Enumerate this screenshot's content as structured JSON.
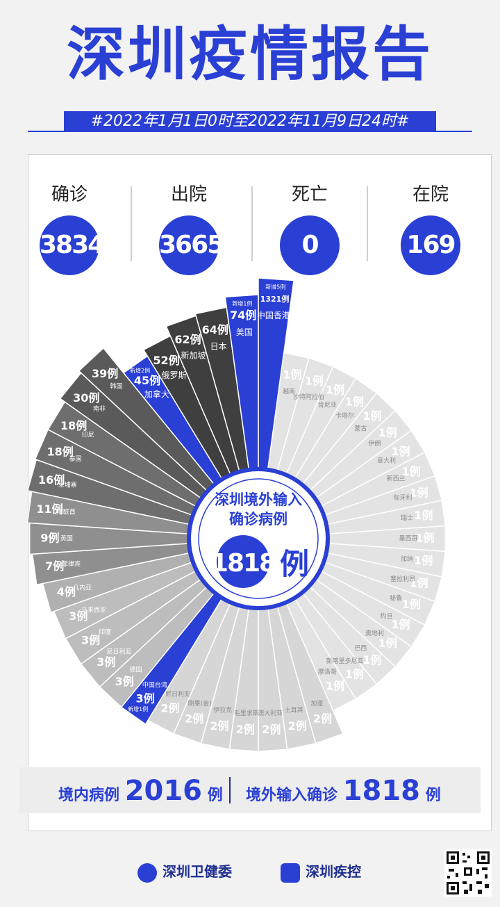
{
  "title": "深圳疫情报告",
  "date_range": "#2022年1月1日0时至2022年11月9日24时#",
  "stats": [
    {
      "label": "确诊",
      "value": "3834"
    },
    {
      "label": "出院",
      "value": "3665"
    },
    {
      "label": "死亡",
      "value": "0"
    },
    {
      "label": "在院",
      "value": "169"
    }
  ],
  "center": {
    "line1": "深圳境外输入",
    "line2": "确诊病例",
    "number": "1818",
    "unit": "例"
  },
  "bottom": {
    "domestic_label": "境内病例",
    "domestic_value": "2016",
    "domestic_unit": "例",
    "imported_label": "境外输入确诊",
    "imported_value": "1818",
    "imported_unit": "例"
  },
  "footer": {
    "org1": "深圳卫健委",
    "org2": "深圳疾控"
  },
  "colors": {
    "blue": "#2a3fd4",
    "dark": "#3a3a3a",
    "light": "#e2e2e2"
  },
  "chart_data": {
    "type": "pie",
    "title": "深圳境外输入确诊病例 1818例",
    "unit": "例",
    "slices": [
      {
        "name": "中国香港",
        "value": 1321,
        "label": "1321例",
        "note": "新增5例",
        "color": "#2a3fd4"
      },
      {
        "name": "越南",
        "value": 1,
        "label": "1例"
      },
      {
        "name": "沙特阿拉伯",
        "value": 1,
        "label": "1例"
      },
      {
        "name": "肯尼亚",
        "value": 1,
        "label": "1例"
      },
      {
        "name": "卡塔尔",
        "value": 1,
        "label": "1例"
      },
      {
        "name": "蒙古",
        "value": 1,
        "label": "1例"
      },
      {
        "name": "伊朗",
        "value": 1,
        "label": "1例"
      },
      {
        "name": "意大利",
        "value": 1,
        "label": "1例"
      },
      {
        "name": "新西兰",
        "value": 1,
        "label": "1例"
      },
      {
        "name": "匈牙利",
        "value": 1,
        "label": "1例"
      },
      {
        "name": "瑞士",
        "value": 1,
        "label": "1例"
      },
      {
        "name": "墨西哥",
        "value": 1,
        "label": "1例"
      },
      {
        "name": "加纳",
        "value": 1,
        "label": "1例"
      },
      {
        "name": "塞拉利昂",
        "value": 1,
        "label": "1例"
      },
      {
        "name": "秘鲁",
        "value": 1,
        "label": "1例"
      },
      {
        "name": "约旦",
        "value": 1,
        "label": "1例"
      },
      {
        "name": "奥地利",
        "value": 1,
        "label": "1例"
      },
      {
        "name": "巴西",
        "value": 1,
        "label": "1例"
      },
      {
        "name": "新喀里多尼亚",
        "value": 1,
        "label": "1例"
      },
      {
        "name": "摩洛哥",
        "value": 1,
        "label": "1例"
      },
      {
        "name": "加蓬",
        "value": 2,
        "label": "2例"
      },
      {
        "name": "土耳其",
        "value": 2,
        "label": "2例"
      },
      {
        "name": "澳大利亚",
        "value": 2,
        "label": "2例"
      },
      {
        "name": "毛里求斯",
        "value": 2,
        "label": "2例"
      },
      {
        "name": "伊拉克",
        "value": 2,
        "label": "2例"
      },
      {
        "name": "刚果(金)",
        "value": 2,
        "label": "2例"
      },
      {
        "name": "尼日利亚",
        "value": 2,
        "label": "2例"
      },
      {
        "name": "中国台湾",
        "value": 3,
        "label": "3例",
        "note": "新增1例",
        "color": "#2a3fd4"
      },
      {
        "name": "德国",
        "value": 3,
        "label": "3例"
      },
      {
        "name": "尼日利亚",
        "value": 3,
        "label": "3例"
      },
      {
        "name": "印度",
        "value": 3,
        "label": "3例"
      },
      {
        "name": "马来西亚",
        "value": 3,
        "label": "3例"
      },
      {
        "name": "几内亚",
        "value": 4,
        "label": "4例"
      },
      {
        "name": "菲律宾",
        "value": 7,
        "label": "7例"
      },
      {
        "name": "英国",
        "value": 9,
        "label": "9例"
      },
      {
        "name": "阿联酋",
        "value": 11,
        "label": "11例"
      },
      {
        "name": "柬埔寨",
        "value": 16,
        "label": "16例"
      },
      {
        "name": "泰国",
        "value": 18,
        "label": "18例"
      },
      {
        "name": "印尼",
        "value": 18,
        "label": "18例"
      },
      {
        "name": "南非",
        "value": 30,
        "label": "30例"
      },
      {
        "name": "韩国",
        "value": 39,
        "label": "39例"
      },
      {
        "name": "加拿大",
        "value": 45,
        "label": "45例",
        "note": "新增2例",
        "color": "#2a3fd4"
      },
      {
        "name": "俄罗斯",
        "value": 52,
        "label": "52例"
      },
      {
        "name": "新加坡",
        "value": 62,
        "label": "62例"
      },
      {
        "name": "日本",
        "value": 64,
        "label": "64例"
      },
      {
        "name": "美国",
        "value": 74,
        "label": "74例",
        "note": "新增1例",
        "color": "#2a3fd4"
      }
    ]
  }
}
